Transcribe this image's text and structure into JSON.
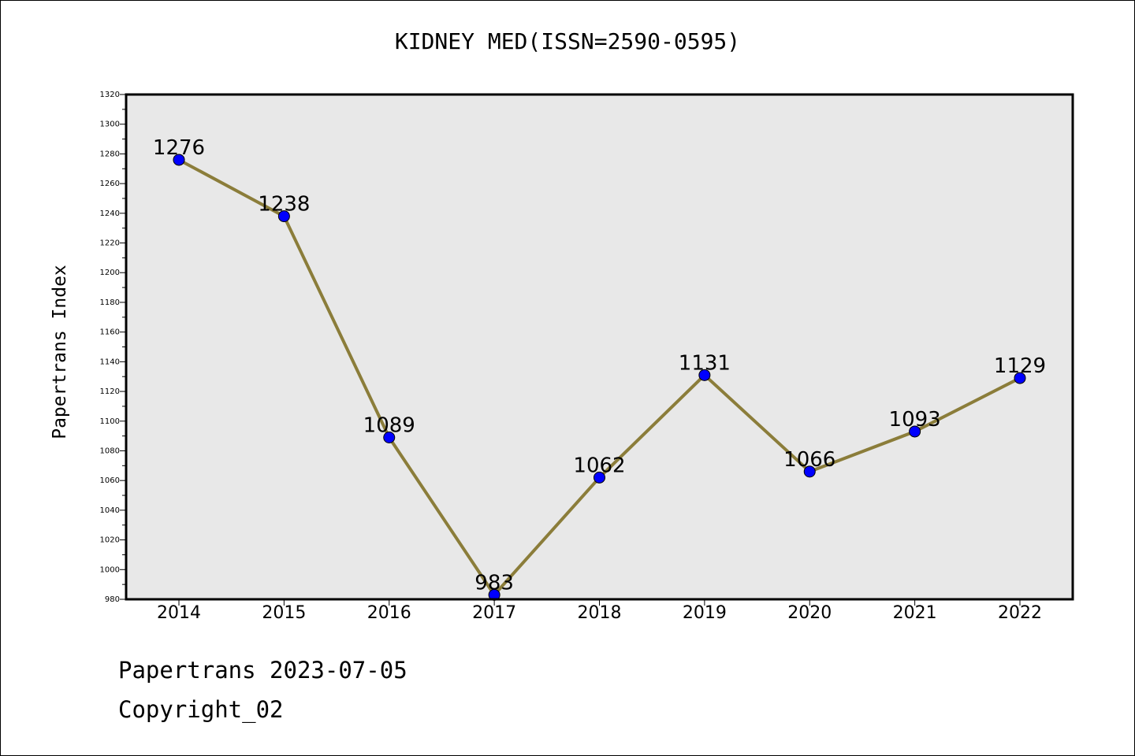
{
  "chart_data": {
    "type": "line",
    "title": "KIDNEY MED(ISSN=2590-0595)",
    "ylabel": "Papertrans Index",
    "xlabel": "",
    "categories": [
      "2014",
      "2015",
      "2016",
      "2017",
      "2018",
      "2019",
      "2020",
      "2021",
      "2022"
    ],
    "values": [
      1276,
      1238,
      1089,
      983,
      1062,
      1131,
      1066,
      1093,
      1129
    ],
    "ylim": [
      980,
      1320
    ],
    "ytick_step": 20,
    "grid": false,
    "plot_background": "#e8e8e8",
    "line_color": "#8b7d3a",
    "marker_color": "#0000ff"
  },
  "footer": {
    "date_line": "Papertrans 2023-07-05",
    "copyright_line": "Copyright_02"
  }
}
